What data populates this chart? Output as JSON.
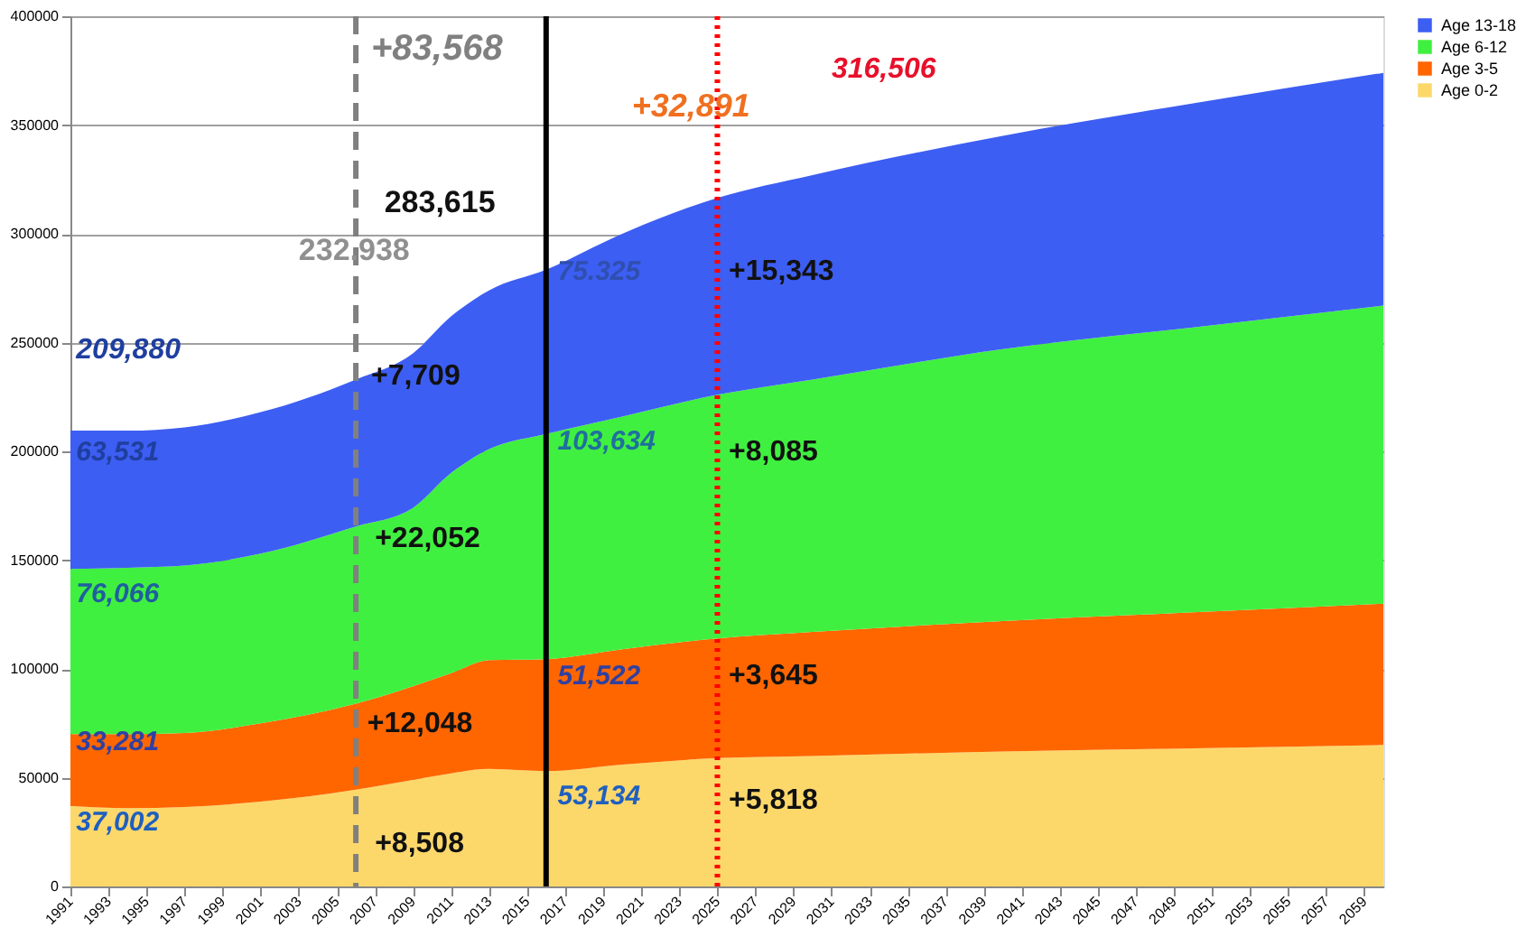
{
  "chart_data": {
    "type": "area",
    "stacked": true,
    "x": [
      1991,
      1994,
      1997,
      2001,
      2006,
      2009,
      2011,
      2013,
      2016,
      2020,
      2025,
      2030,
      2040,
      2050,
      2060
    ],
    "series": [
      {
        "name": "Age 0-2",
        "color": "#fcd86b",
        "values": [
          37000,
          36000,
          36500,
          39000,
          44500,
          49000,
          52000,
          54000,
          53000,
          56000,
          59000,
          60000,
          62000,
          63500,
          65000
        ]
      },
      {
        "name": "Age 3-5",
        "color": "#ff6600",
        "values": [
          33000,
          34000,
          34000,
          36000,
          39500,
          43000,
          46000,
          50000,
          51500,
          53000,
          55000,
          57000,
          60000,
          62500,
          65000
        ]
      },
      {
        "name": "Age 6-12",
        "color": "#40f040",
        "values": [
          76000,
          76500,
          77000,
          78000,
          81500,
          82000,
          92000,
          97000,
          103500,
          107000,
          112000,
          116000,
          125000,
          131000,
          137000
        ]
      },
      {
        "name": "Age 13-18",
        "color": "#3d5ef2",
        "values": [
          63500,
          63000,
          63500,
          65000,
          67500,
          71000,
          72000,
          73000,
          75500,
          84000,
          90500,
          94000,
          98000,
          103000,
          107000
        ]
      }
    ],
    "xlim": [
      1991,
      2060
    ],
    "xticks": [
      1991,
      1993,
      1995,
      1997,
      1999,
      2001,
      2003,
      2005,
      2007,
      2009,
      2011,
      2013,
      2015,
      2017,
      2019,
      2021,
      2023,
      2025,
      2027,
      2029,
      2031,
      2033,
      2035,
      2037,
      2039,
      2041,
      2043,
      2045,
      2047,
      2049,
      2051,
      2053,
      2055,
      2057,
      2059
    ],
    "ylim": [
      0,
      400000
    ],
    "yticks": [
      0,
      50000,
      100000,
      150000,
      200000,
      250000,
      300000,
      350000,
      400000
    ],
    "grid": "y",
    "legend": "right",
    "ref_lines": [
      {
        "axis": "x",
        "value": 2006,
        "color": "#808080",
        "line_style": "dashed"
      },
      {
        "axis": "x",
        "value": 2016,
        "color": "#000000",
        "line_style": "solid"
      },
      {
        "axis": "x",
        "value": 2025,
        "color": "#ff0000",
        "line_style": "dotted"
      }
    ],
    "annotations": [
      "+83,568",
      "+32,891",
      "316,506",
      "283,615",
      "232.938",
      "209,880",
      "63,531",
      "76,066",
      "33,281",
      "37,002",
      "+7,709",
      "+22,052",
      "+12,048",
      "+8,508",
      "75.325",
      "103,634",
      "51,522",
      "53,134",
      "+15,343",
      "+8,085",
      "+3,645",
      "+5,818"
    ]
  }
}
